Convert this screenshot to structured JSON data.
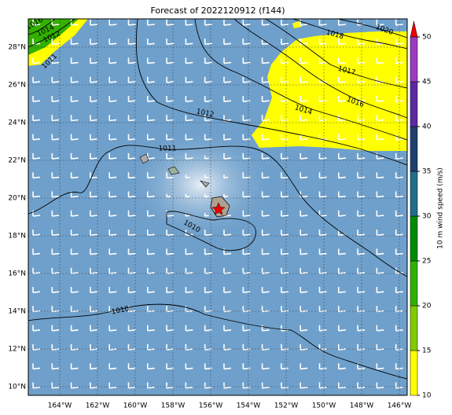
{
  "title": "Forecast of 2022120912 (f144)",
  "map": {
    "lon_labels": [
      "164°W",
      "162°W",
      "160°W",
      "158°W",
      "156°W",
      "154°W",
      "152°W",
      "150°W",
      "148°W",
      "146°W"
    ],
    "lat_labels": [
      "28°N",
      "26°N",
      "24°N",
      "22°N",
      "20°N",
      "18°N",
      "16°N",
      "14°N",
      "12°N",
      "10°N"
    ],
    "contour_labels": [
      "1016",
      "1014",
      "1012",
      "1011",
      "1018",
      "1020",
      "1017",
      "1016",
      "1014",
      "1012",
      "1011",
      "1010",
      "1010"
    ]
  },
  "colorbar": {
    "label": "10 m wind speed (m/s)",
    "ticks": [
      10,
      15,
      20,
      25,
      30,
      35,
      40,
      45,
      50
    ],
    "colors": [
      "#ffff00",
      "#80cc00",
      "#33b000",
      "#008c00",
      "#216d8c",
      "#1e3f70",
      "#5a2aa0",
      "#9a3cc0"
    ],
    "extend_color": "#ee0000"
  }
}
